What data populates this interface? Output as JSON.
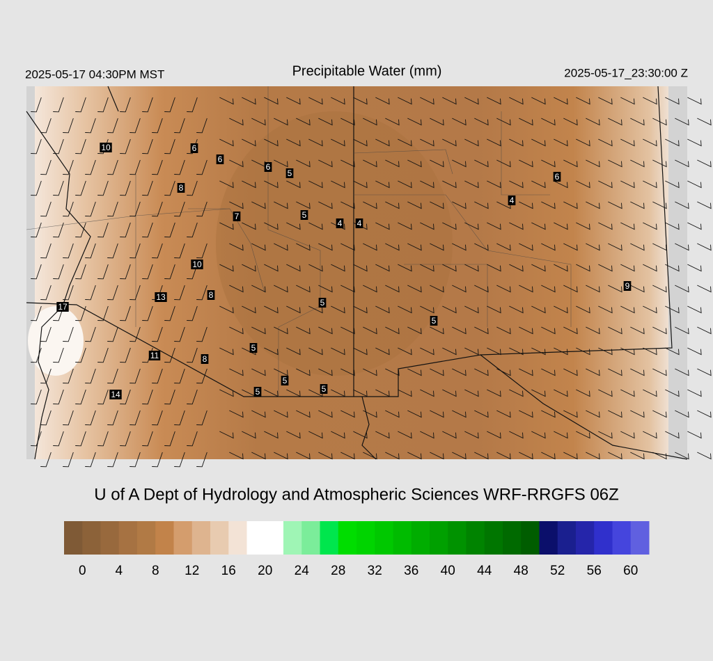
{
  "header": {
    "left": "2025-05-17 04:30PM MST",
    "title": "Precipitable Water (mm)",
    "right": "2025-05-17_23:30:00 Z"
  },
  "stations": [
    10,
    6,
    6,
    6,
    5,
    8,
    7,
    5,
    4,
    4,
    4,
    6,
    10,
    13,
    8,
    5,
    9,
    17,
    5,
    5,
    11,
    8,
    5,
    5,
    5,
    14
  ],
  "footer": "U of A Dept of Hydrology and Atmospheric Sciences WRF-RRGFS 06Z",
  "colorbar": {
    "range": [
      -2,
      62
    ],
    "ticks": [
      0,
      4,
      8,
      12,
      16,
      20,
      24,
      28,
      32,
      36,
      40,
      44,
      48,
      52,
      56,
      60
    ],
    "colors": [
      "#7f5a36",
      "#8c6239",
      "#98693d",
      "#a67242",
      "#b17a45",
      "#c2834a",
      "#d49d6d",
      "#deb48f",
      "#e8cbb0",
      "#f3e3d6",
      "#ffffff",
      "#ffffff",
      "#9ff5b5",
      "#7bed9a",
      "#00e64d",
      "#00dd00",
      "#00d400",
      "#00c800",
      "#00bb00",
      "#00ad00",
      "#00a000",
      "#009200",
      "#008300",
      "#007600",
      "#006a00",
      "#005d00",
      "#0b0f6b",
      "#1a1f8f",
      "#2525aa",
      "#3030cc",
      "#4545dd",
      "#6060e0"
    ]
  }
}
